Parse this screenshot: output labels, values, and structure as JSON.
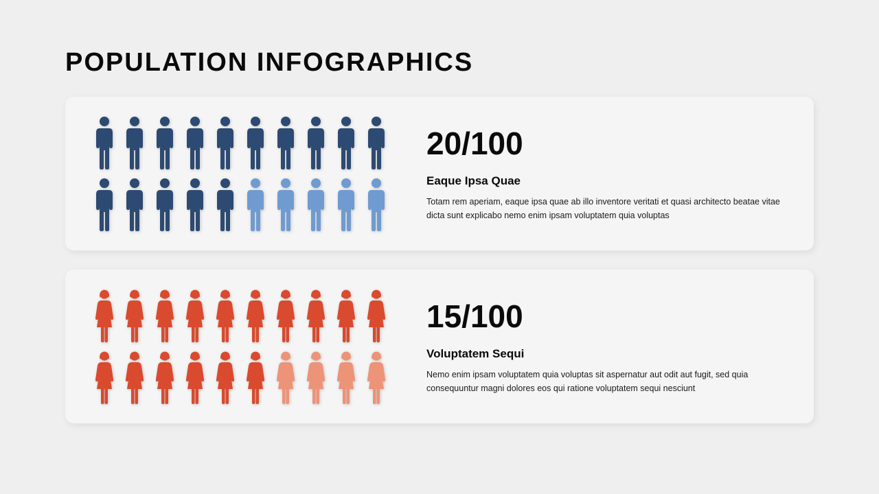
{
  "page": {
    "title": "POPULATION INFOGRAPHICS",
    "background_color": "#efefef",
    "card_background": "#f5f5f5",
    "title_fontsize": 38,
    "title_color": "#0a0a0a"
  },
  "cards": [
    {
      "type": "pictograph",
      "icon_type": "male",
      "rows": 2,
      "cols": 10,
      "total_icons": 20,
      "dark_count": 15,
      "light_count": 5,
      "dark_color": "#2c4a72",
      "light_color": "#6f9bd1",
      "stat": "20/100",
      "subtitle": "Eaque Ipsa Quae",
      "desc": "Totam rem aperiam, eaque ipsa quae ab illo inventore veritati et quasi architecto beatae vitae dicta sunt explicabo nemo enim ipsam voluptatem quia voluptas",
      "stat_fontsize": 46,
      "subtitle_fontsize": 17,
      "desc_fontsize": 12.5
    },
    {
      "type": "pictograph",
      "icon_type": "female",
      "rows": 2,
      "cols": 10,
      "total_icons": 20,
      "dark_count": 16,
      "light_count": 4,
      "dark_color": "#d94a2e",
      "light_color": "#ed9378",
      "stat": "15/100",
      "subtitle": "Voluptatem Sequi",
      "desc": "Nemo enim ipsam voluptatem quia voluptas sit aspernatur aut odit aut fugit, sed quia consequuntur magni dolores eos qui ratione voluptatem sequi nesciunt",
      "stat_fontsize": 46,
      "subtitle_fontsize": 17,
      "desc_fontsize": 12.5
    }
  ]
}
